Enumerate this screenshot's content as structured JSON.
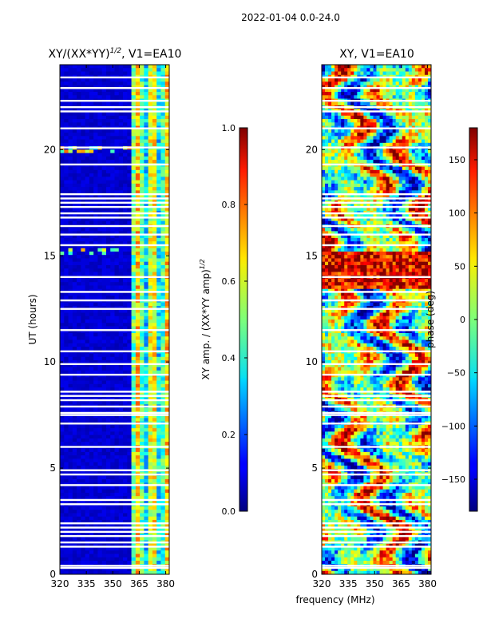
{
  "figure": {
    "suptitle": "2022-01-04 0.0-24.0",
    "shared_xlabel": "frequency (MHz)"
  },
  "chart_data": [
    {
      "type": "heatmap",
      "title_main": "XY/(XX*YY)",
      "title_sup": "1/2",
      "title_tail": ", V1=EA10",
      "ylabel": "UT (hours)",
      "xlim": [
        320,
        382
      ],
      "ylim": [
        0,
        24
      ],
      "x_ticks": [
        320,
        335,
        350,
        365,
        380
      ],
      "y_ticks": [
        0,
        5,
        10,
        15,
        20
      ],
      "colorbar": {
        "label": "XY amp. / (XX*YY amp)",
        "label_sup": "1/2",
        "range": [
          0.0,
          1.0
        ],
        "ticks": [
          "0.0",
          "0.2",
          "0.4",
          "0.6",
          "0.8",
          "1.0"
        ],
        "tick_values": [
          0.0,
          0.2,
          0.4,
          0.6,
          0.8,
          1.0
        ],
        "colormap": "jet"
      },
      "flagged_rows_ut": [
        0.3,
        0.4,
        1.3,
        1.5,
        1.8,
        2.0,
        2.2,
        2.4,
        3.3,
        3.5,
        4.2,
        4.7,
        4.9,
        6.0,
        7.1,
        7.5,
        7.6,
        7.9,
        8.2,
        8.4,
        8.6,
        9.4,
        9.9,
        10.5,
        11.5,
        12.5,
        12.9,
        13.3,
        14.0,
        15.5,
        16.0,
        16.4,
        16.8,
        17.0,
        17.3,
        17.5,
        17.7,
        17.9,
        19.3,
        20.1,
        21.0,
        21.8,
        22.0,
        22.3,
        22.9,
        23.4
      ]
    },
    {
      "type": "heatmap",
      "title_main": "XY, V1=EA10",
      "ylabel": "",
      "xlim": [
        320,
        382
      ],
      "ylim": [
        0,
        24
      ],
      "x_ticks": [
        320,
        335,
        350,
        365,
        380
      ],
      "y_ticks": [
        0,
        5,
        10,
        15,
        20
      ],
      "colorbar": {
        "label": "phase (deg)",
        "range": [
          -180,
          180
        ],
        "ticks": [
          "−150",
          "−100",
          "−50",
          "0",
          "50",
          "100",
          "150"
        ],
        "tick_values": [
          -150,
          -100,
          -50,
          0,
          50,
          100,
          150
        ],
        "colormap": "jet"
      },
      "flagged_rows_ut": [
        0.3,
        0.4,
        1.3,
        1.5,
        1.8,
        2.0,
        2.2,
        2.4,
        3.3,
        3.5,
        4.2,
        4.7,
        4.9,
        6.0,
        7.1,
        7.5,
        7.6,
        7.9,
        8.2,
        8.4,
        8.6,
        9.4,
        9.9,
        10.5,
        11.5,
        12.5,
        12.9,
        13.3,
        14.0,
        15.5,
        16.0,
        16.4,
        16.8,
        17.0,
        17.3,
        17.5,
        17.7,
        17.9,
        19.3,
        20.1,
        21.0,
        21.8,
        22.0,
        22.3,
        22.9,
        23.4
      ]
    }
  ]
}
